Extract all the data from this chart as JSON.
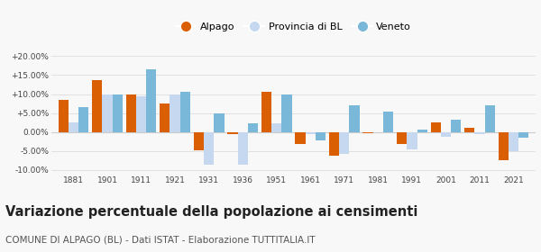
{
  "years": [
    1881,
    1901,
    1911,
    1921,
    1931,
    1936,
    1951,
    1961,
    1971,
    1981,
    1991,
    2001,
    2011,
    2021
  ],
  "alpago": [
    8.5,
    13.8,
    10.0,
    7.5,
    -4.8,
    -0.5,
    10.5,
    -3.2,
    -6.2,
    -0.3,
    -3.2,
    2.5,
    1.2,
    -7.5
  ],
  "provincia_bl": [
    2.5,
    10.0,
    9.5,
    9.8,
    -8.5,
    -8.5,
    2.2,
    -0.5,
    -5.8,
    0.0,
    -4.5,
    -1.2,
    -0.5,
    -5.0
  ],
  "veneto": [
    6.5,
    10.0,
    16.5,
    10.5,
    5.0,
    2.2,
    10.0,
    -2.2,
    7.0,
    5.3,
    0.7,
    3.2,
    7.0,
    -1.5
  ],
  "color_alpago": "#d95f02",
  "color_provincia": "#c5d8f0",
  "color_veneto": "#7ab8d9",
  "ylim": [
    -11.0,
    21.5
  ],
  "yticks": [
    -10.0,
    -5.0,
    0.0,
    5.0,
    10.0,
    15.0,
    20.0
  ],
  "ytick_labels": [
    "-10.00%",
    "-5.00%",
    "0.00%",
    "+5.00%",
    "+10.00%",
    "+15.00%",
    "+20.00%"
  ],
  "title": "Variazione percentuale della popolazione ai censimenti",
  "subtitle": "COMUNE DI ALPAGO (BL) - Dati ISTAT - Elaborazione TUTTITALIA.IT",
  "title_fontsize": 10.5,
  "subtitle_fontsize": 7.5,
  "bar_width": 0.3,
  "bg_color": "#f8f8f8"
}
